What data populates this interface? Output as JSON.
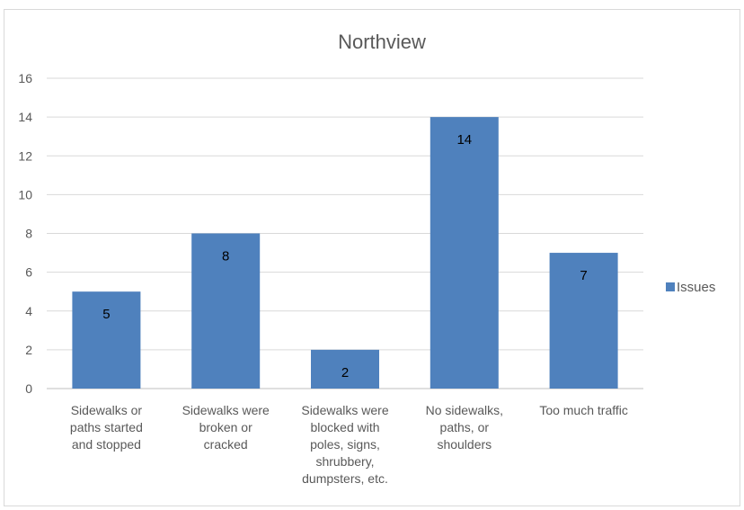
{
  "chart_data": {
    "type": "bar",
    "title": "Northview",
    "categories": [
      [
        "Sidewalks or",
        "paths started",
        "and stopped"
      ],
      [
        "Sidewalks were",
        "broken or",
        "cracked"
      ],
      [
        "Sidewalks were",
        "blocked with",
        "poles, signs,",
        "shrubbery,",
        "dumpsters, etc."
      ],
      [
        "No sidewalks,",
        "paths, or",
        "shoulders"
      ],
      [
        "Too much traffic"
      ]
    ],
    "series": [
      {
        "name": "Issues",
        "values": [
          5,
          8,
          2,
          14,
          7
        ],
        "color": "#4f81bd"
      }
    ],
    "ylim": [
      0,
      16
    ],
    "yticks": [
      0,
      2,
      4,
      6,
      8,
      10,
      12,
      14,
      16
    ],
    "grid": true,
    "legend": "right",
    "data_labels": true
  }
}
